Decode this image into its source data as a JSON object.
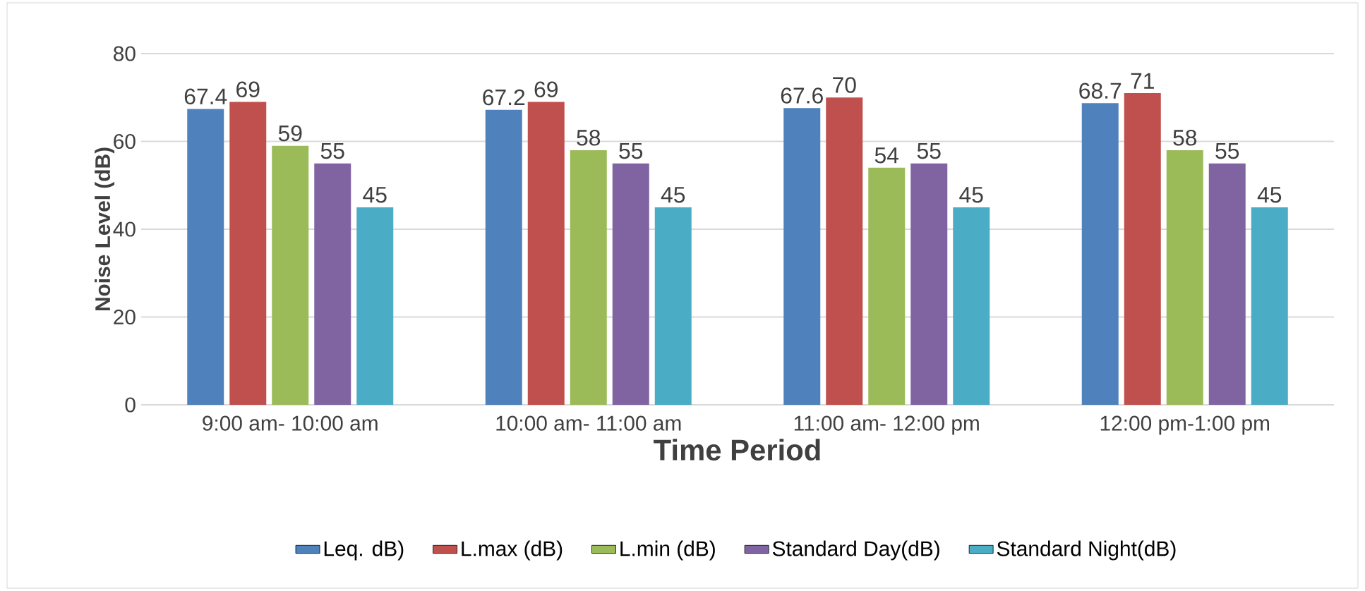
{
  "chart_data": {
    "type": "bar",
    "xlabel": "Time Period",
    "ylabel": "Noise Level (dB)",
    "categories": [
      "9:00 am- 10:00 am",
      "10:00 am- 11:00 am",
      "11:00 am- 12:00 pm",
      "12:00 pm-1:00 pm"
    ],
    "series": [
      {
        "name": "Leq. dB)",
        "color": "#4f81bd",
        "values": [
          67.4,
          67.2,
          67.6,
          68.7
        ]
      },
      {
        "name": "L.max (dB)",
        "color": "#c0504d",
        "values": [
          69,
          69,
          70,
          71
        ]
      },
      {
        "name": "L.min (dB)",
        "color": "#9bbb59",
        "values": [
          59,
          58,
          54,
          58
        ]
      },
      {
        "name": "Standard Day(dB)",
        "color": "#8064a2",
        "values": [
          55,
          55,
          55,
          55
        ]
      },
      {
        "name": "Standard Night(dB)",
        "color": "#4bacc6",
        "values": [
          45,
          45,
          45,
          45
        ]
      }
    ],
    "ylim": [
      0,
      80
    ],
    "yticks": [
      0,
      20,
      40,
      60,
      80
    ],
    "grid": "y",
    "legend": "bottom",
    "data_labels": true
  }
}
